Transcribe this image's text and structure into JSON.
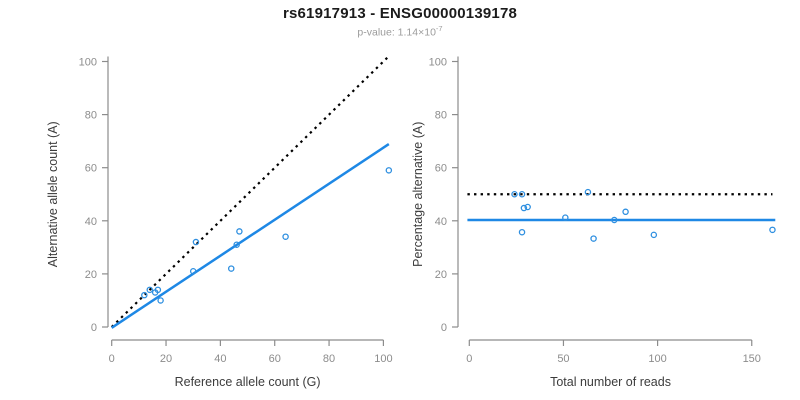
{
  "header": {
    "title": "rs61917913 - ENSG00000139178",
    "subtitle": {
      "text": "p-value: 1.14×10",
      "exponent": "-7"
    }
  },
  "colors": {
    "fit_line": "#1E88E5",
    "point_stroke": "#2E8FE0",
    "reference_line": "#000000",
    "axis": "#8c8c8c",
    "tick_label": "#8c8c8c",
    "axis_title": "#3c3c3c",
    "title_text": "#1b1b1b",
    "subtitle_text": "#9c9c9c"
  },
  "chart_data": [
    {
      "type": "scatter",
      "name": "allele-counts",
      "xlabel": "Reference allele count (G)",
      "ylabel": "Alternative allele count (A)",
      "xlim": [
        0,
        100
      ],
      "ylim": [
        0,
        100
      ],
      "xticks": [
        0,
        20,
        40,
        60,
        80,
        100
      ],
      "yticks": [
        0,
        20,
        40,
        60,
        80,
        100
      ],
      "grid": false,
      "legend": "none",
      "points": [
        [
          12,
          12
        ],
        [
          14,
          14
        ],
        [
          16,
          13
        ],
        [
          17,
          14
        ],
        [
          18,
          10
        ],
        [
          30,
          21
        ],
        [
          31,
          32
        ],
        [
          44,
          22
        ],
        [
          46,
          31
        ],
        [
          47,
          36
        ],
        [
          64,
          34
        ],
        [
          102,
          59
        ]
      ],
      "lines": [
        {
          "role": "identity-line",
          "style": "dotted",
          "x1": 0,
          "y1": 0,
          "x2": 101.5,
          "y2": 101.5
        },
        {
          "role": "fit-line",
          "style": "solid",
          "x1": 0,
          "y1": -0.3,
          "x2": 102,
          "y2": 68.9
        }
      ]
    },
    {
      "type": "scatter",
      "name": "percentage-vs-reads",
      "xlabel": "Total number of reads",
      "ylabel": "Percentage alternative (A)",
      "xlim": [
        0,
        160
      ],
      "ylim": [
        0,
        100
      ],
      "xticks": [
        0,
        50,
        100,
        150
      ],
      "yticks": [
        0,
        20,
        40,
        60,
        80,
        100
      ],
      "grid": false,
      "legend": "none",
      "points": [
        [
          24,
          50.0
        ],
        [
          28,
          50.0
        ],
        [
          29,
          44.8
        ],
        [
          31,
          45.2
        ],
        [
          28,
          35.7
        ],
        [
          51,
          41.2
        ],
        [
          63,
          50.8
        ],
        [
          66,
          33.3
        ],
        [
          77,
          40.3
        ],
        [
          83,
          43.4
        ],
        [
          98,
          34.7
        ],
        [
          161,
          36.6
        ]
      ],
      "lines": [
        {
          "role": "reference-line",
          "style": "dotted",
          "x1": -1,
          "y1": 50,
          "x2": 161,
          "y2": 50
        },
        {
          "role": "fit-line",
          "style": "solid",
          "x1": -1,
          "y1": 40.3,
          "x2": 162.5,
          "y2": 40.3
        }
      ]
    }
  ]
}
